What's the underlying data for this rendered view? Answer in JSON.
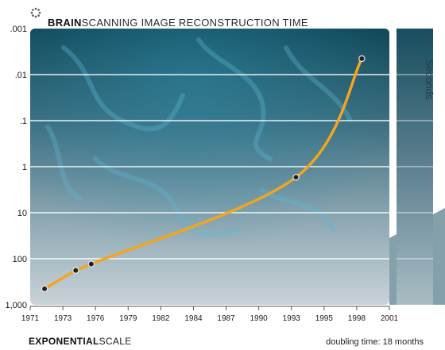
{
  "chart_data": {
    "type": "line",
    "title_bold": "BRAIN",
    "title_rest": "SCANNING IMAGE RECONSTRUCTION TIME",
    "xlabel": "",
    "ylabel": "Seconds",
    "y_scale": "log",
    "y_inverted": true,
    "xlim": [
      1971,
      2001
    ],
    "ylim": [
      1000,
      0.001
    ],
    "x_ticks": [
      "1971",
      "1973",
      "1976",
      "1979",
      "1982",
      "1984",
      "1987",
      "1990",
      "1993",
      "1995",
      "1998",
      "2001"
    ],
    "y_ticks": [
      ".001",
      ".01",
      ".1",
      "1",
      "10",
      "100",
      "1,000"
    ],
    "series": [
      {
        "values": [
          {
            "x": 1972.2,
            "y": 450
          },
          {
            "x": 1974.8,
            "y": 180
          },
          {
            "x": 1976.1,
            "y": 130
          },
          {
            "x": 1993.2,
            "y": 1.7
          },
          {
            "x": 1998.7,
            "y": 0.0045
          }
        ],
        "color": "#f2a51f"
      }
    ],
    "grid": true,
    "footer_bold": "EXPONENTIAL",
    "footer_rest": "SCALE",
    "note": "doubling time: 18 months"
  }
}
